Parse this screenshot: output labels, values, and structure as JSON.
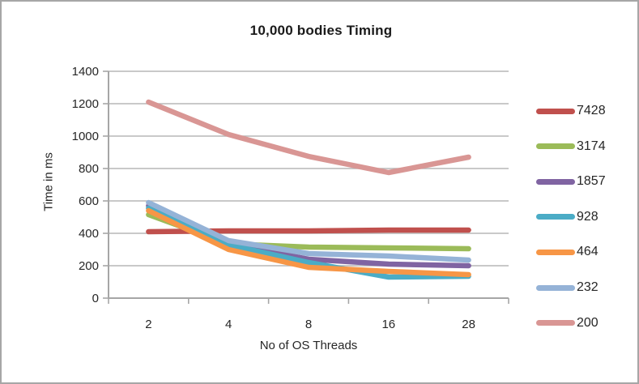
{
  "window": {
    "background": "#ffffff",
    "border_color": "#a6a6a6"
  },
  "chart_data": {
    "type": "line",
    "title": "10,000 bodies Timing",
    "xlabel": "No of OS Threads",
    "ylabel": "Time in ms",
    "categories": [
      "2",
      "4",
      "8",
      "16",
      "28"
    ],
    "y_ticks": [
      "0",
      "200",
      "400",
      "600",
      "800",
      "1000",
      "1200",
      "1400"
    ],
    "ylim": [
      0,
      1400
    ],
    "grid": "horizontal",
    "legend_position": "right",
    "axis_color": "#a6a6a6",
    "gridline_color": "#b7b7b7",
    "line_width": 6.5,
    "series": [
      {
        "name": "7428",
        "color": "#c0504d",
        "values": [
          410,
          415,
          415,
          420,
          420
        ]
      },
      {
        "name": "3174",
        "color": "#9bbb59",
        "values": [
          515,
          335,
          315,
          310,
          305
        ]
      },
      {
        "name": "1857",
        "color": "#8064a2",
        "values": [
          570,
          335,
          240,
          210,
          200
        ]
      },
      {
        "name": "928",
        "color": "#4bacc6",
        "values": [
          555,
          330,
          220,
          130,
          135
        ]
      },
      {
        "name": "464",
        "color": "#f79646",
        "values": [
          540,
          300,
          190,
          165,
          145
        ]
      },
      {
        "name": "232",
        "color": "#95b3d7",
        "values": [
          590,
          355,
          275,
          260,
          235
        ]
      },
      {
        "name": "200",
        "color": "#d99694",
        "values": [
          1210,
          1010,
          875,
          775,
          870
        ]
      }
    ]
  }
}
